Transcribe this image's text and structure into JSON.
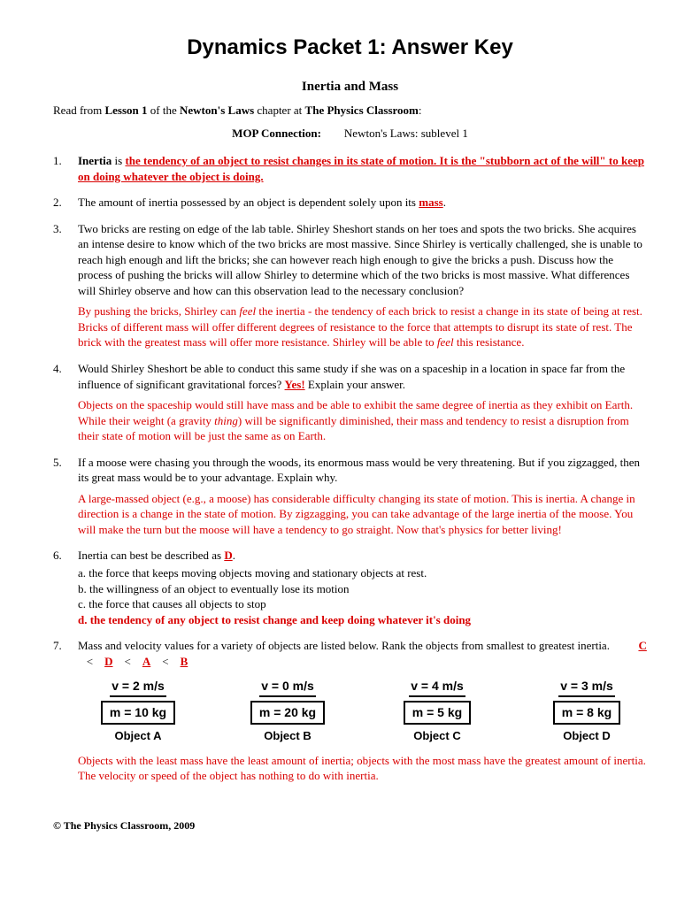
{
  "title": "Dynamics Packet 1: Answer Key",
  "subtitle": "Inertia and Mass",
  "intro_prefix": "Read from ",
  "intro_lesson": "Lesson 1",
  "intro_mid": " of the ",
  "intro_chapter": "Newton's Laws",
  "intro_mid2": " chapter at ",
  "intro_source": "The Physics Classroom",
  "intro_suffix": ":",
  "mop_label": "MOP Connection:",
  "mop_value": "Newton's Laws:  sublevel 1",
  "q1": {
    "num": "1.",
    "lead_bold": "Inertia",
    "lead_plain": " is ",
    "ans": "the tendency of an object to resist changes in its state of motion. It is the \"stubborn act of the will\" to keep on doing whatever the object is doing."
  },
  "q2": {
    "num": "2.",
    "text": "The amount of inertia possessed by an object is dependent solely upon its ",
    "ans": "mass",
    "suffix": "."
  },
  "q3": {
    "num": "3.",
    "text": "Two bricks are resting on edge of the lab table.  Shirley Sheshort stands on her toes and spots the two bricks.  She acquires an intense desire to know which of the two bricks are most massive.  Since Shirley is vertically challenged, she is unable to reach high enough and lift the bricks; she can however reach high enough to give the bricks a push.  Discuss how the process of pushing the bricks will allow Shirley to determine which of the two bricks is most massive.  What differences will Shirley observe and how can this observation lead to the necessary conclusion?",
    "ans_p1": "By pushing the bricks, Shirley can ",
    "ans_feel": "feel",
    "ans_p2": " the inertia - the tendency of each brick to resist a change in its state of being at rest. Bricks of different mass will offer different degrees of resistance to the force that attempts to disrupt its state of rest. The brick with the greatest mass will offer more resistance. Shirley will be able to ",
    "ans_feel2": "feel",
    "ans_p3": " this resistance."
  },
  "q4": {
    "num": "4.",
    "text_p1": "Would Shirley Sheshort be able to conduct this same study if she was on a spaceship in a location in space far from the influence of significant gravitational forces?  ",
    "inline_ans": "Yes!",
    "text_p2": "  Explain your answer.",
    "ans_p1": "Objects on the spaceship would still have mass and be able to exhibit the same degree of inertia as they exhibit on Earth. While their weight (a gravity ",
    "ans_thing": "thing",
    "ans_p2": ") will be significantly diminished, their mass and tendency to resist a disruption from their state of motion will be just the same as on Earth."
  },
  "q5": {
    "num": "5.",
    "text": "If a moose were chasing you through the woods, its enormous mass would be very threatening.  But if you zigzagged, then its great mass would be to your advantage.  Explain why.",
    "ans": "A large-massed object (e.g., a moose) has considerable difficulty changing its state of motion. This is inertia. A change in direction is a change in the state of motion. By zigzagging, you can take advantage of the large inertia of the moose. You will make the turn but the moose will have a tendency to go straight. Now that's physics for better living!"
  },
  "q6": {
    "num": "6.",
    "lead": "Inertia can best be described as ",
    "ans_letter": "D",
    "suffix": ".",
    "opt_a": "a.  the force that keeps moving objects moving and stationary objects at rest.",
    "opt_b": "b.  the willingness of an object to eventually lose its motion",
    "opt_c": "c.  the force that causes all objects to stop",
    "opt_d": "d.  the tendency of any object to resist change and keep doing whatever it's doing"
  },
  "q7": {
    "num": "7.",
    "text": "Mass and velocity values for a variety of objects are listed below.  Rank the objects from smallest to greatest inertia.",
    "rank_c": "C",
    "rank_d": "D",
    "rank_a": "A",
    "rank_b": "B",
    "lt": "<",
    "objects": [
      {
        "v": "v = 2 m/s",
        "m": "m = 10 kg",
        "label": "Object A"
      },
      {
        "v": "v = 0 m/s",
        "m": "m = 20 kg",
        "label": "Object B"
      },
      {
        "v": "v = 4 m/s",
        "m": "m = 5 kg",
        "label": "Object C"
      },
      {
        "v": "v = 3 m/s",
        "m": "m = 8 kg",
        "label": "Object D"
      }
    ],
    "ans": "Objects with the least mass have the least amount of inertia; objects with the most mass have the greatest amount of inertia. The velocity or speed of the object has nothing to do with inertia."
  },
  "footer": "©  The Physics Classroom, 2009"
}
